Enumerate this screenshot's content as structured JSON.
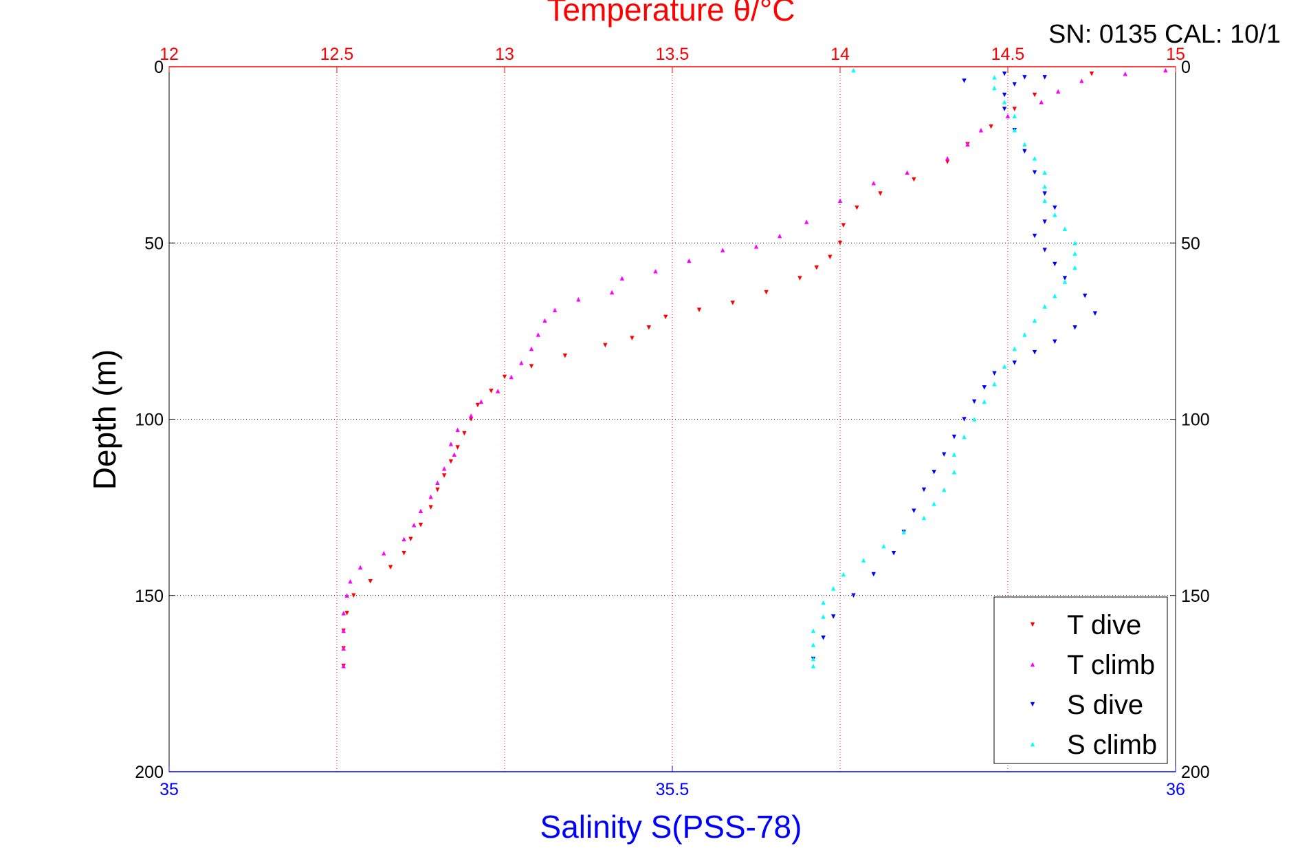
{
  "serial_text": "SN: 0135  CAL: 10/1",
  "chart_data": {
    "type": "scatter",
    "title": "Temperature θ/°C",
    "xlabel": "Salinity S(PSS-78)",
    "ylabel": "Depth (m)",
    "colors": {
      "temperature_axis": "#ff0000",
      "salinity_axis": "#0000ff",
      "grid": "#ff0000",
      "frame": "#000000"
    },
    "temperature_axis": {
      "lim": [
        12,
        15
      ],
      "ticks": [
        "12",
        "12.5",
        "13",
        "13.5",
        "14",
        "14.5",
        "15"
      ],
      "tick_values": [
        12,
        12.5,
        13,
        13.5,
        14,
        14.5,
        15
      ]
    },
    "salinity_axis": {
      "lim": [
        35,
        36
      ],
      "ticks": [
        "35",
        "35.5",
        "36"
      ],
      "tick_values": [
        35,
        35.5,
        36
      ]
    },
    "depth_axis": {
      "lim": [
        0,
        200
      ],
      "reversed": true,
      "ticks": [
        "0",
        "50",
        "100",
        "150",
        "200"
      ],
      "tick_values": [
        0,
        50,
        100,
        150,
        200
      ]
    },
    "grid": true,
    "legend_position": "bottom-right",
    "series": [
      {
        "name": "T dive",
        "axis": "temperature",
        "color": "#ff0000",
        "marker": "triangle-down",
        "points": [
          [
            14.75,
            2
          ],
          [
            14.58,
            8
          ],
          [
            14.52,
            12
          ],
          [
            14.45,
            17
          ],
          [
            14.38,
            22
          ],
          [
            14.32,
            27
          ],
          [
            14.22,
            32
          ],
          [
            14.12,
            36
          ],
          [
            14.05,
            40
          ],
          [
            14.01,
            45
          ],
          [
            14.0,
            50
          ],
          [
            13.97,
            54
          ],
          [
            13.93,
            57
          ],
          [
            13.88,
            60
          ],
          [
            13.78,
            64
          ],
          [
            13.68,
            67
          ],
          [
            13.58,
            69
          ],
          [
            13.48,
            71
          ],
          [
            13.43,
            74
          ],
          [
            13.38,
            77
          ],
          [
            13.3,
            79
          ],
          [
            13.18,
            82
          ],
          [
            13.08,
            85
          ],
          [
            13.0,
            88
          ],
          [
            12.96,
            92
          ],
          [
            12.92,
            96
          ],
          [
            12.9,
            100
          ],
          [
            12.88,
            104
          ],
          [
            12.86,
            108
          ],
          [
            12.84,
            112
          ],
          [
            12.82,
            116
          ],
          [
            12.8,
            120
          ],
          [
            12.78,
            125
          ],
          [
            12.75,
            130
          ],
          [
            12.72,
            134
          ],
          [
            12.7,
            138
          ],
          [
            12.66,
            142
          ],
          [
            12.6,
            146
          ],
          [
            12.55,
            150
          ],
          [
            12.53,
            155
          ],
          [
            12.52,
            160
          ],
          [
            12.52,
            165
          ],
          [
            12.52,
            170
          ]
        ]
      },
      {
        "name": "T climb",
        "axis": "temperature",
        "color": "#ff00ff",
        "marker": "triangle-up",
        "points": [
          [
            14.97,
            1
          ],
          [
            14.85,
            2
          ],
          [
            14.72,
            4
          ],
          [
            14.65,
            7
          ],
          [
            14.6,
            10
          ],
          [
            14.5,
            14
          ],
          [
            14.42,
            18
          ],
          [
            14.38,
            22
          ],
          [
            14.32,
            26
          ],
          [
            14.2,
            30
          ],
          [
            14.1,
            33
          ],
          [
            14.0,
            38
          ],
          [
            13.9,
            44
          ],
          [
            13.82,
            48
          ],
          [
            13.75,
            51
          ],
          [
            13.65,
            52
          ],
          [
            13.55,
            55
          ],
          [
            13.45,
            58
          ],
          [
            13.35,
            60
          ],
          [
            13.32,
            64
          ],
          [
            13.22,
            66
          ],
          [
            13.15,
            69
          ],
          [
            13.12,
            72
          ],
          [
            13.1,
            76
          ],
          [
            13.08,
            80
          ],
          [
            13.05,
            84
          ],
          [
            13.02,
            88
          ],
          [
            12.98,
            92
          ],
          [
            12.93,
            95
          ],
          [
            12.9,
            99
          ],
          [
            12.86,
            103
          ],
          [
            12.84,
            107
          ],
          [
            12.85,
            110
          ],
          [
            12.82,
            114
          ],
          [
            12.8,
            118
          ],
          [
            12.78,
            122
          ],
          [
            12.75,
            126
          ],
          [
            12.73,
            130
          ],
          [
            12.7,
            134
          ],
          [
            12.64,
            138
          ],
          [
            12.57,
            142
          ],
          [
            12.54,
            146
          ],
          [
            12.53,
            150
          ],
          [
            12.52,
            155
          ],
          [
            12.52,
            160
          ],
          [
            12.52,
            165
          ],
          [
            12.52,
            170
          ]
        ]
      },
      {
        "name": "S dive",
        "axis": "salinity",
        "color": "#0000ff",
        "marker": "triangle-down",
        "points": [
          [
            35.83,
            2
          ],
          [
            35.85,
            3
          ],
          [
            35.87,
            3
          ],
          [
            35.84,
            5
          ],
          [
            35.83,
            8
          ],
          [
            35.83,
            12
          ],
          [
            35.84,
            18
          ],
          [
            35.85,
            24
          ],
          [
            35.86,
            30
          ],
          [
            35.87,
            36
          ],
          [
            35.88,
            40
          ],
          [
            35.87,
            44
          ],
          [
            35.86,
            48
          ],
          [
            35.87,
            52
          ],
          [
            35.88,
            56
          ],
          [
            35.89,
            60
          ],
          [
            35.91,
            65
          ],
          [
            35.92,
            70
          ],
          [
            35.9,
            74
          ],
          [
            35.88,
            78
          ],
          [
            35.86,
            81
          ],
          [
            35.84,
            84
          ],
          [
            35.82,
            87
          ],
          [
            35.81,
            91
          ],
          [
            35.8,
            95
          ],
          [
            35.79,
            100
          ],
          [
            35.78,
            105
          ],
          [
            35.77,
            110
          ],
          [
            35.76,
            115
          ],
          [
            35.75,
            120
          ],
          [
            35.74,
            126
          ],
          [
            35.73,
            132
          ],
          [
            35.72,
            138
          ],
          [
            35.7,
            144
          ],
          [
            35.68,
            150
          ],
          [
            35.66,
            156
          ],
          [
            35.65,
            162
          ],
          [
            35.64,
            168
          ],
          [
            35.79,
            4
          ]
        ]
      },
      {
        "name": "S climb",
        "axis": "salinity",
        "color": "#00ffff",
        "marker": "triangle-up",
        "points": [
          [
            35.68,
            1
          ],
          [
            35.82,
            3
          ],
          [
            35.82,
            6
          ],
          [
            35.83,
            10
          ],
          [
            35.84,
            14
          ],
          [
            35.84,
            18
          ],
          [
            35.85,
            22
          ],
          [
            35.86,
            26
          ],
          [
            35.87,
            30
          ],
          [
            35.87,
            34
          ],
          [
            35.87,
            38
          ],
          [
            35.88,
            42
          ],
          [
            35.89,
            46
          ],
          [
            35.9,
            50
          ],
          [
            35.9,
            53
          ],
          [
            35.9,
            57
          ],
          [
            35.89,
            61
          ],
          [
            35.88,
            65
          ],
          [
            35.87,
            68
          ],
          [
            35.86,
            72
          ],
          [
            35.85,
            76
          ],
          [
            35.84,
            80
          ],
          [
            35.83,
            85
          ],
          [
            35.82,
            90
          ],
          [
            35.81,
            95
          ],
          [
            35.8,
            100
          ],
          [
            35.79,
            105
          ],
          [
            35.78,
            110
          ],
          [
            35.78,
            115
          ],
          [
            35.77,
            120
          ],
          [
            35.76,
            124
          ],
          [
            35.75,
            128
          ],
          [
            35.73,
            132
          ],
          [
            35.71,
            136
          ],
          [
            35.69,
            140
          ],
          [
            35.67,
            144
          ],
          [
            35.66,
            148
          ],
          [
            35.65,
            152
          ],
          [
            35.65,
            156
          ],
          [
            35.64,
            160
          ],
          [
            35.64,
            164
          ],
          [
            35.64,
            168
          ],
          [
            35.64,
            170
          ]
        ]
      }
    ]
  }
}
